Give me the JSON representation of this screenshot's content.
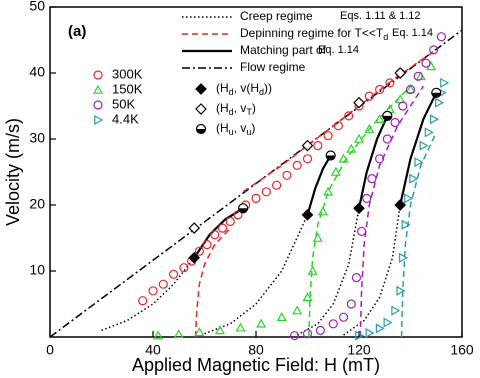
{
  "chart_data": {
    "type": "scatter",
    "panel_label": "(a)",
    "x_label": "Applied Magnetic Field: H (mT)",
    "y_label": "Velocity (m/s)",
    "xlim": [
      0,
      160
    ],
    "ylim": [
      0,
      50
    ],
    "xticks": [
      0,
      40,
      80,
      120,
      160
    ],
    "yticks": [
      10,
      20,
      30,
      40,
      50
    ],
    "series": [
      {
        "name": "300K",
        "color": "#e8262a",
        "marker": "circle",
        "x": [
          36,
          40,
          44,
          48,
          52,
          55,
          58,
          61,
          64,
          67,
          70,
          73,
          76,
          80,
          84,
          88,
          92,
          96,
          100,
          104,
          108,
          112,
          116,
          120,
          124,
          128,
          132,
          136
        ],
        "y": [
          5.5,
          7,
          8,
          9.5,
          10.5,
          11.5,
          13,
          14,
          15.5,
          16.5,
          17.5,
          18.5,
          20,
          21,
          22,
          23,
          24.5,
          26,
          27,
          29,
          30.5,
          32,
          33.5,
          35,
          36.5,
          37.5,
          38.5,
          40
        ]
      },
      {
        "name": "150K",
        "color": "#2dd42d",
        "marker": "triangle",
        "x": [
          42,
          50,
          58,
          66,
          74,
          82,
          90,
          96,
          100,
          102,
          104,
          106,
          108,
          111,
          114,
          117,
          120,
          124,
          128,
          132,
          136,
          140,
          144,
          148
        ],
        "y": [
          0.2,
          0.4,
          0.7,
          1,
          1.4,
          2,
          3,
          4,
          6,
          10,
          15,
          19,
          22,
          25,
          27,
          28.5,
          30,
          31.5,
          33,
          34.5,
          36,
          37.5,
          39.5,
          41
        ]
      },
      {
        "name": "50K",
        "color": "#a020c0",
        "marker": "circle",
        "x": [
          95,
          100,
          105,
          110,
          114,
          117,
          119,
          121,
          123,
          125,
          128,
          131,
          134,
          137,
          140,
          143,
          146,
          149,
          152
        ],
        "y": [
          0.2,
          0.5,
          1,
          2,
          3,
          5,
          9,
          16,
          21,
          24,
          27,
          30,
          32.5,
          35,
          37.5,
          39.5,
          41.5,
          43.5,
          45.5
        ]
      },
      {
        "name": "4.4K",
        "color": "#2a9da5",
        "marker": "rtriangle",
        "x": [
          120,
          124,
          128,
          131,
          134,
          136,
          137,
          138,
          139,
          141,
          143,
          145,
          147,
          149,
          151,
          152,
          153
        ],
        "y": [
          0.2,
          0.6,
          1.3,
          2.2,
          4,
          7,
          12,
          17,
          21,
          24,
          26.5,
          29,
          31,
          33,
          35.5,
          37,
          38.5
        ]
      }
    ],
    "curves": [
      {
        "style": "dashdot",
        "color": "#000000",
        "x": [
          0,
          160
        ],
        "y": [
          0,
          46.5
        ]
      },
      {
        "style": "dotted",
        "color": "#000000",
        "x": [
          20,
          30,
          40,
          48,
          56
        ],
        "y": [
          1,
          2.5,
          5,
          8,
          12
        ]
      },
      {
        "style": "dotted",
        "color": "#000000",
        "x": [
          60,
          70,
          80,
          90,
          100
        ],
        "y": [
          0.5,
          2,
          5,
          10,
          18.5
        ]
      },
      {
        "style": "dotted",
        "color": "#000000",
        "x": [
          96,
          104,
          110,
          116,
          120
        ],
        "y": [
          0.3,
          2,
          5,
          11,
          19.5
        ]
      },
      {
        "style": "dotted",
        "color": "#000000",
        "x": [
          114,
          122,
          128,
          133,
          136
        ],
        "y": [
          0.3,
          2.5,
          6,
          12,
          20
        ]
      },
      {
        "style": "dashed",
        "color": "#e8262a",
        "x": [
          56.5,
          57,
          58,
          60,
          64,
          70
        ],
        "y": [
          0,
          4,
          8,
          11,
          14,
          16.5
        ]
      },
      {
        "style": "dashed",
        "color": "#e8262a",
        "x": [
          75,
          90,
          105,
          120,
          135,
          150
        ],
        "y": [
          22,
          26,
          30.5,
          35,
          39.5,
          43.5
        ]
      },
      {
        "style": "dashed",
        "color": "#2dd42d",
        "x": [
          100.5,
          101,
          102,
          104,
          108,
          115,
          125,
          140
        ],
        "y": [
          0,
          6,
          12,
          17,
          22,
          27,
          32,
          38
        ]
      },
      {
        "style": "dashed",
        "color": "#a020c0",
        "x": [
          120.5,
          121,
          122,
          124,
          128,
          135,
          145
        ],
        "y": [
          0,
          7,
          14,
          20,
          26,
          32,
          38
        ]
      },
      {
        "style": "dashed",
        "color": "#2a9da5",
        "x": [
          136.5,
          137,
          138,
          140,
          144,
          150
        ],
        "y": [
          0,
          7,
          14,
          20,
          26,
          31
        ]
      },
      {
        "style": "solid",
        "color": "#000000",
        "x": [
          56,
          62,
          68,
          75
        ],
        "y": [
          12,
          15.5,
          17.8,
          19.5
        ]
      },
      {
        "style": "solid",
        "color": "#000000",
        "x": [
          100,
          103,
          106,
          109
        ],
        "y": [
          18.5,
          22.5,
          25.5,
          27.5
        ]
      },
      {
        "style": "solid",
        "color": "#000000",
        "x": [
          120,
          123,
          127,
          131
        ],
        "y": [
          19.5,
          25,
          30,
          33.5
        ]
      },
      {
        "style": "solid",
        "color": "#000000",
        "x": [
          136,
          140,
          145,
          150
        ],
        "y": [
          20,
          27,
          33,
          37
        ]
      }
    ],
    "points": [
      {
        "marker": "diamond-filled",
        "label": [
          "(H",
          "d",
          ", v(H",
          "d",
          "))"
        ],
        "x": [
          56,
          100,
          120,
          136
        ],
        "y": [
          12,
          18.5,
          19.5,
          20
        ]
      },
      {
        "marker": "diamond-open",
        "label": [
          "(H",
          "d",
          ", v",
          "T",
          ")"
        ],
        "x": [
          56,
          100,
          120,
          136
        ],
        "y": [
          16.5,
          29,
          35.5,
          40
        ]
      },
      {
        "marker": "half-circle",
        "label": [
          "(H",
          "u",
          ", v",
          "u",
          ")"
        ],
        "x": [
          75,
          109,
          131,
          150
        ],
        "y": [
          19.5,
          27.5,
          33.5,
          37
        ]
      }
    ],
    "line_legend": [
      {
        "style": "dotted",
        "color": "#000000",
        "label": "Creep regime",
        "note": "Eqs. 1.11 & 1.12"
      },
      {
        "style": "dashed",
        "color": "#e8262a",
        "label": [
          "Depinning regime for T<<T",
          "d"
        ],
        "note": "Eq. 1.14"
      },
      {
        "style": "solid",
        "color": "#000000",
        "label": "Matching part of",
        "note": "Eq. 1.14"
      },
      {
        "style": "dashdot",
        "color": "#000000",
        "label": "Flow regime"
      }
    ]
  }
}
